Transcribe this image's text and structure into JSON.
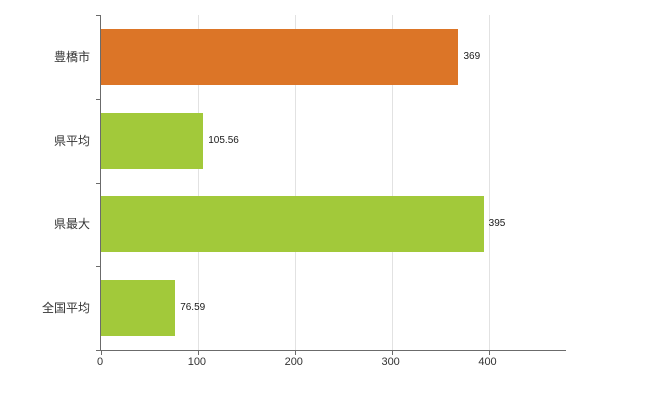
{
  "chart_data": {
    "type": "bar",
    "orientation": "horizontal",
    "title": "",
    "xlabel": "",
    "ylabel": "",
    "categories": [
      "豊橋市",
      "県平均",
      "県最大",
      "全国平均"
    ],
    "values": [
      369,
      105.56,
      395,
      76.59
    ],
    "value_labels": [
      "369",
      "105.56",
      "395",
      "76.59"
    ],
    "bar_colors": [
      "#dc7527",
      "#a2c93a",
      "#a2c93a",
      "#a2c93a"
    ],
    "xlim": [
      0,
      480
    ],
    "x_ticks": [
      0,
      100,
      200,
      300,
      400
    ],
    "x_tick_labels": [
      "0",
      "100",
      "200",
      "300",
      "400"
    ],
    "grid": true,
    "legend": "none"
  },
  "colors": {
    "background": "#ffffff",
    "axis": "#6b6b6b",
    "gridline": "#e2e2e2",
    "label_text": "#333333",
    "value_text": "#1a1a1a"
  }
}
